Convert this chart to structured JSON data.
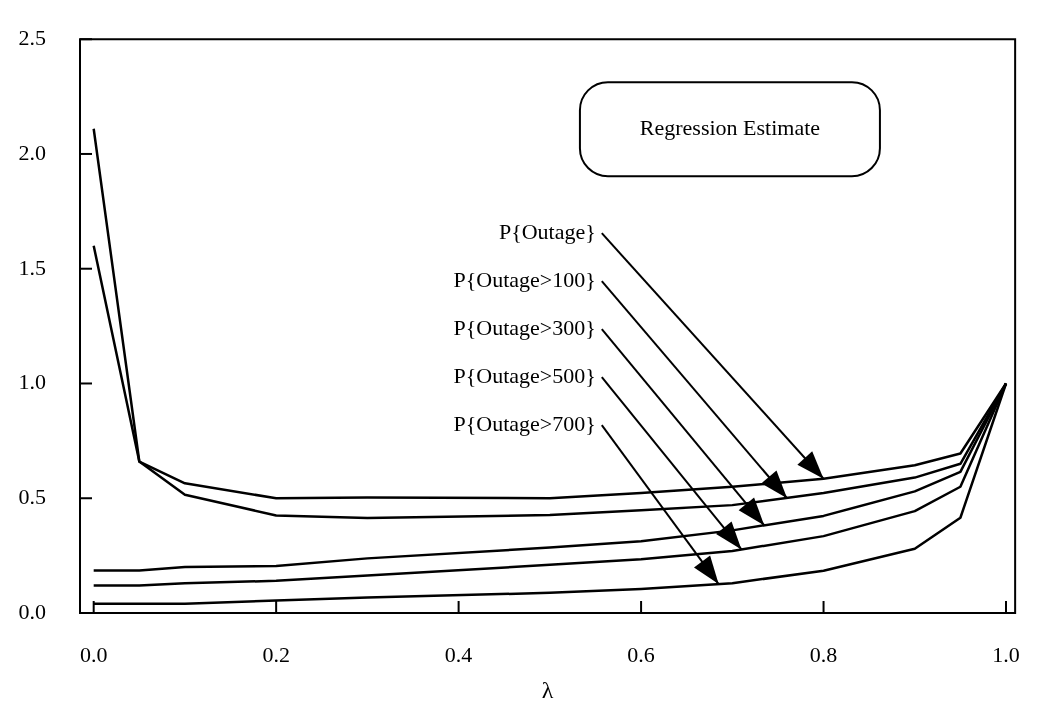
{
  "chart_data": {
    "type": "line",
    "xlabel": "λ",
    "x": [
      0,
      0.05,
      0.1,
      0.2,
      0.3,
      0.5,
      0.6,
      0.7,
      0.8,
      0.9,
      0.95,
      1
    ],
    "series": [
      {
        "color": "#000000",
        "values": [
          2.11,
          0.66,
          0.565,
          0.5,
          0.503,
          0.5,
          0.523,
          0.55,
          0.585,
          0.644,
          0.695,
          1
        ]
      },
      {
        "color": "#000000",
        "values": [
          1.6,
          0.66,
          0.515,
          0.425,
          0.414,
          0.427,
          0.448,
          0.47,
          0.523,
          0.59,
          0.65,
          1
        ]
      },
      {
        "color": "#000000",
        "values": [
          0.185,
          0.185,
          0.2,
          0.205,
          0.238,
          0.285,
          0.313,
          0.36,
          0.423,
          0.53,
          0.615,
          1
        ]
      },
      {
        "color": "#000000",
        "values": [
          0.12,
          0.12,
          0.13,
          0.14,
          0.163,
          0.21,
          0.234,
          0.27,
          0.335,
          0.444,
          0.55,
          1
        ]
      },
      {
        "color": "#000000",
        "values": [
          0.04,
          0.04,
          0.04,
          0.055,
          0.067,
          0.088,
          0.105,
          0.13,
          0.184,
          0.28,
          0.415,
          1
        ]
      }
    ],
    "xlim": [
      -0.015,
      1.01
    ],
    "ylim": [
      0,
      2.5
    ],
    "xticks": [
      {
        "value": 0,
        "label": "0.0"
      },
      {
        "value": 0.2,
        "label": "0.2"
      },
      {
        "value": 0.4,
        "label": "0.4"
      },
      {
        "value": 0.6,
        "label": "0.6"
      },
      {
        "value": 0.8,
        "label": "0.8"
      },
      {
        "value": 1,
        "label": "1.0"
      }
    ],
    "yticks": [
      {
        "value": 0,
        "label": "0.0"
      },
      {
        "value": 0.5,
        "label": "0.5"
      },
      {
        "value": 1,
        "label": "1.0"
      },
      {
        "value": 1.5,
        "label": "1.5"
      },
      {
        "value": 2,
        "label": "2.0"
      },
      {
        "value": 2.5,
        "label": "2.5"
      }
    ],
    "grid": false,
    "legend": false,
    "marker": "none",
    "line_style": "solid",
    "annotations": [
      "Regression Estimate",
      {
        "text": "P{Outage}",
        "x": 0.8,
        "y": 0.585
      },
      {
        "text": "P{Outage>100}",
        "x": 0.76,
        "y": 0.5
      },
      {
        "text": "P{Outage>300}",
        "x": 0.735,
        "y": 0.382
      },
      {
        "text": "P{Outage>500}",
        "x": 0.71,
        "y": 0.277
      },
      {
        "text": "P{Outage>700}",
        "x": 0.685,
        "y": 0.126
      }
    ]
  }
}
